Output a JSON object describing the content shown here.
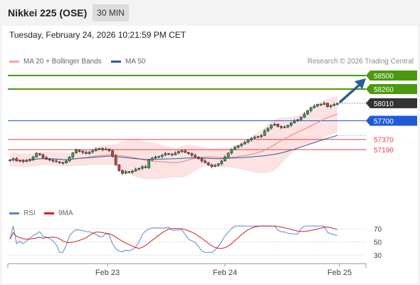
{
  "header": {
    "title": "Nikkei 225 (OSE)",
    "timeframe": "30 MIN"
  },
  "timestamp": "Tuesday, February 24, 2026 10:21:59 PM CET",
  "copyright": "Research © 2026 Trading Central",
  "colors": {
    "resistance": "#4c9a0c",
    "pivot": "#1e5ad7",
    "support": "#e0434b",
    "current": "#333333",
    "bollinger": "#f7a3a3",
    "ma50": "#2d5d96",
    "rsi": "#5b87d6",
    "rsi_ma": "#d42020",
    "arrow": "#2d5d96"
  },
  "chart_data": [
    {
      "type": "candlestick",
      "legend": [
        {
          "label": "MA 20 + Bollinger Bands",
          "color": "#f7a3a3"
        },
        {
          "label": "MA 50",
          "color": "#2d5d96"
        }
      ],
      "ylim": [
        56700,
        58570
      ],
      "levels": [
        {
          "value": 58500,
          "label": "58500",
          "kind": "resistance"
        },
        {
          "value": 58260,
          "label": "58260",
          "kind": "resistance"
        },
        {
          "value": 58010,
          "label": "58010",
          "kind": "current"
        },
        {
          "value": 57700,
          "label": "57700",
          "kind": "pivot"
        },
        {
          "value": 57370,
          "label": "57370",
          "kind": "support"
        },
        {
          "value": 57190,
          "label": "57190",
          "kind": "support"
        }
      ],
      "close": [
        57010,
        57030,
        56990,
        57000,
        56980,
        56995,
        57020,
        57060,
        57120,
        57100,
        57050,
        57020,
        57005,
        56990,
        56975,
        56960,
        56955,
        56990,
        57060,
        57130,
        57180,
        57160,
        57140,
        57120,
        57150,
        57170,
        57200,
        57210,
        57190,
        57200,
        57170,
        57080,
        56920,
        56820,
        56770,
        56800,
        56790,
        56810,
        56840,
        56860,
        56890,
        56870,
        57010,
        57040,
        57060,
        57070,
        57090,
        57120,
        57110,
        57100,
        57130,
        57160,
        57170,
        57140,
        57120,
        57090,
        57060,
        57030,
        56990,
        56960,
        56920,
        56890,
        56910,
        56940,
        56990,
        57060,
        57130,
        57190,
        57230,
        57260,
        57290,
        57320,
        57360,
        57390,
        57410,
        57420,
        57440,
        57520,
        57570,
        57620,
        57640,
        57600,
        57580,
        57590,
        57620,
        57660,
        57700,
        57720,
        57760,
        57820,
        57880,
        57930,
        57960,
        57990,
        57990,
        58010,
        57950,
        57970,
        57990,
        58010
      ],
      "ma50_start_index": 6,
      "rsi": {
        "legend": [
          {
            "label": "RSI",
            "color": "#5b87d6"
          },
          {
            "label": "9MA",
            "color": "#d42020"
          }
        ],
        "levels": [
          70,
          50,
          30
        ],
        "ylim": [
          20,
          80
        ]
      },
      "x_labels": [
        "Feb 23",
        "Feb 24",
        "Feb 25"
      ]
    }
  ]
}
